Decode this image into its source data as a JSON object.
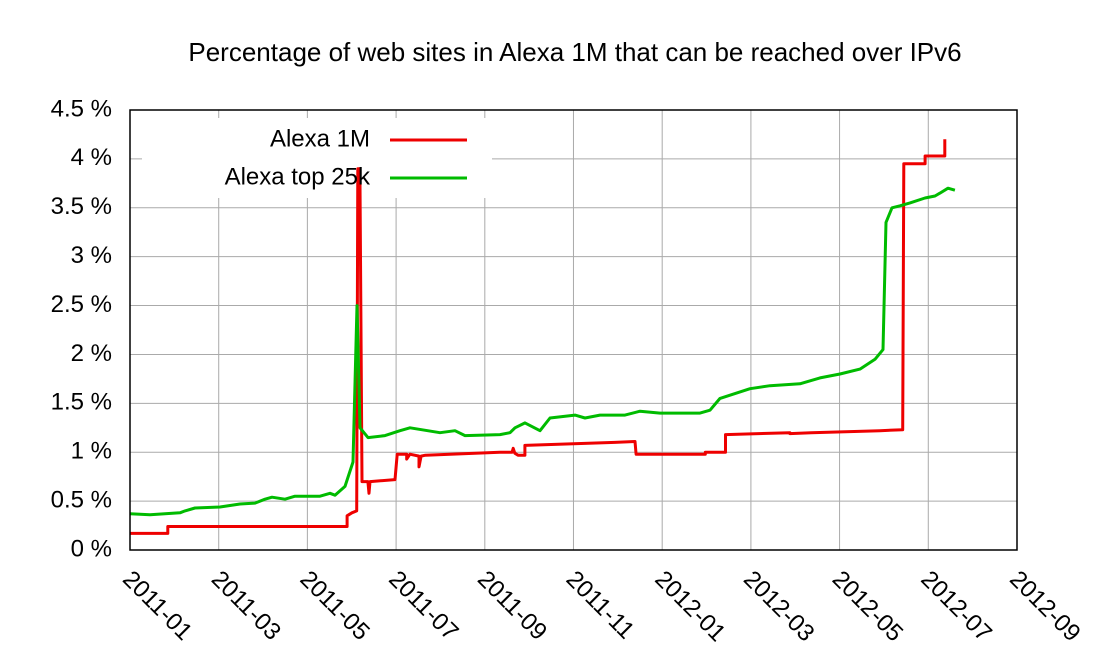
{
  "chart_data": {
    "type": "line",
    "title": "Percentage of web sites in Alexa 1M that can be reached over IPv6",
    "xlim": [
      2011.0,
      2012.6667
    ],
    "xticks": [
      {
        "value": 2011.0,
        "label": "2011-01"
      },
      {
        "value": 2011.1667,
        "label": "2011-03"
      },
      {
        "value": 2011.3333,
        "label": "2011-05"
      },
      {
        "value": 2011.5,
        "label": "2011-07"
      },
      {
        "value": 2011.6667,
        "label": "2011-09"
      },
      {
        "value": 2011.8333,
        "label": "2011-11"
      },
      {
        "value": 2012.0,
        "label": "2012-01"
      },
      {
        "value": 2012.1667,
        "label": "2012-03"
      },
      {
        "value": 2012.3333,
        "label": "2012-05"
      },
      {
        "value": 2012.5,
        "label": "2012-07"
      },
      {
        "value": 2012.6667,
        "label": "2012-09"
      }
    ],
    "ylim": [
      0,
      4.5
    ],
    "yticks": [
      {
        "value": 0,
        "label": "0 %"
      },
      {
        "value": 0.5,
        "label": "0.5 %"
      },
      {
        "value": 1,
        "label": "1 %"
      },
      {
        "value": 1.5,
        "label": "1.5 %"
      },
      {
        "value": 2,
        "label": "2 %"
      },
      {
        "value": 2.5,
        "label": "2.5 %"
      },
      {
        "value": 3,
        "label": "3 %"
      },
      {
        "value": 3.5,
        "label": "3.5 %"
      },
      {
        "value": 4,
        "label": "4 %"
      },
      {
        "value": 4.5,
        "label": "4.5 %"
      }
    ],
    "grid": true,
    "legend": "top-left",
    "series": [
      {
        "name": "Alexa 1M",
        "color": "#ee0000",
        "x": [
          2011.0,
          2011.071,
          2011.071,
          2011.408,
          2011.408,
          2011.417,
          2011.426,
          2011.428,
          2011.432,
          2011.436,
          2011.447,
          2011.449,
          2011.451,
          2011.498,
          2011.502,
          2011.52,
          2011.52,
          2011.526,
          2011.543,
          2011.543,
          2011.547,
          2011.555,
          2011.695,
          2011.718,
          2011.72,
          2011.723,
          2011.729,
          2011.742,
          2011.742,
          2011.911,
          2011.949,
          2011.951,
          2012.081,
          2012.081,
          2012.119,
          2012.119,
          2012.24,
          2012.24,
          2012.28,
          2012.409,
          2012.452,
          2012.454,
          2012.494,
          2012.494,
          2012.531,
          2012.531
        ],
        "values": [
          0.17,
          0.17,
          0.24,
          0.24,
          0.35,
          0.38,
          0.4,
          3.9,
          3.9,
          0.7,
          0.7,
          0.58,
          0.7,
          0.72,
          0.98,
          0.98,
          0.93,
          0.98,
          0.96,
          0.85,
          0.96,
          0.97,
          1.0,
          1.0,
          1.04,
          0.99,
          0.97,
          0.97,
          1.07,
          1.1,
          1.11,
          0.98,
          0.98,
          1.0,
          1.0,
          1.18,
          1.2,
          1.19,
          1.2,
          1.22,
          1.23,
          3.95,
          3.95,
          4.03,
          4.03,
          4.2
        ]
      },
      {
        "name": "Alexa top 25k",
        "color": "#00bb00",
        "x": [
          2011.0,
          2011.0376,
          2011.094,
          2011.1033,
          2011.1221,
          2011.1691,
          2011.2067,
          2011.2349,
          2011.2537,
          2011.2668,
          2011.2912,
          2011.31,
          2011.357,
          2011.3758,
          2011.3852,
          2011.404,
          2011.419,
          2011.4265,
          2011.4322,
          2011.4472,
          2011.4791,
          2011.5073,
          2011.5261,
          2011.5825,
          2011.6107,
          2011.6295,
          2011.6952,
          2011.714,
          2011.7234,
          2011.7422,
          2011.7704,
          2011.7892,
          2011.8361,
          2011.8549,
          2011.8831,
          2011.9301,
          2011.9583,
          2011.9959,
          2012.071,
          2012.0898,
          2012.1086,
          2012.1368,
          2012.165,
          2012.2026,
          2012.2589,
          2012.2965,
          2012.3341,
          2012.3717,
          2012.3999,
          2012.4149,
          2012.4205,
          2012.4318,
          2012.4468,
          2012.4656,
          2012.4938,
          2012.5126,
          2012.522,
          2012.537,
          2012.5501
        ],
        "values": [
          0.37,
          0.36,
          0.38,
          0.4,
          0.43,
          0.44,
          0.47,
          0.48,
          0.52,
          0.54,
          0.52,
          0.55,
          0.55,
          0.58,
          0.56,
          0.65,
          0.9,
          2.5,
          1.25,
          1.15,
          1.17,
          1.22,
          1.25,
          1.2,
          1.22,
          1.17,
          1.18,
          1.2,
          1.25,
          1.3,
          1.22,
          1.35,
          1.38,
          1.35,
          1.38,
          1.38,
          1.42,
          1.4,
          1.4,
          1.43,
          1.55,
          1.6,
          1.65,
          1.68,
          1.7,
          1.76,
          1.8,
          1.85,
          1.95,
          2.05,
          3.35,
          3.5,
          3.52,
          3.55,
          3.6,
          3.62,
          3.65,
          3.7,
          3.68
        ]
      }
    ]
  }
}
